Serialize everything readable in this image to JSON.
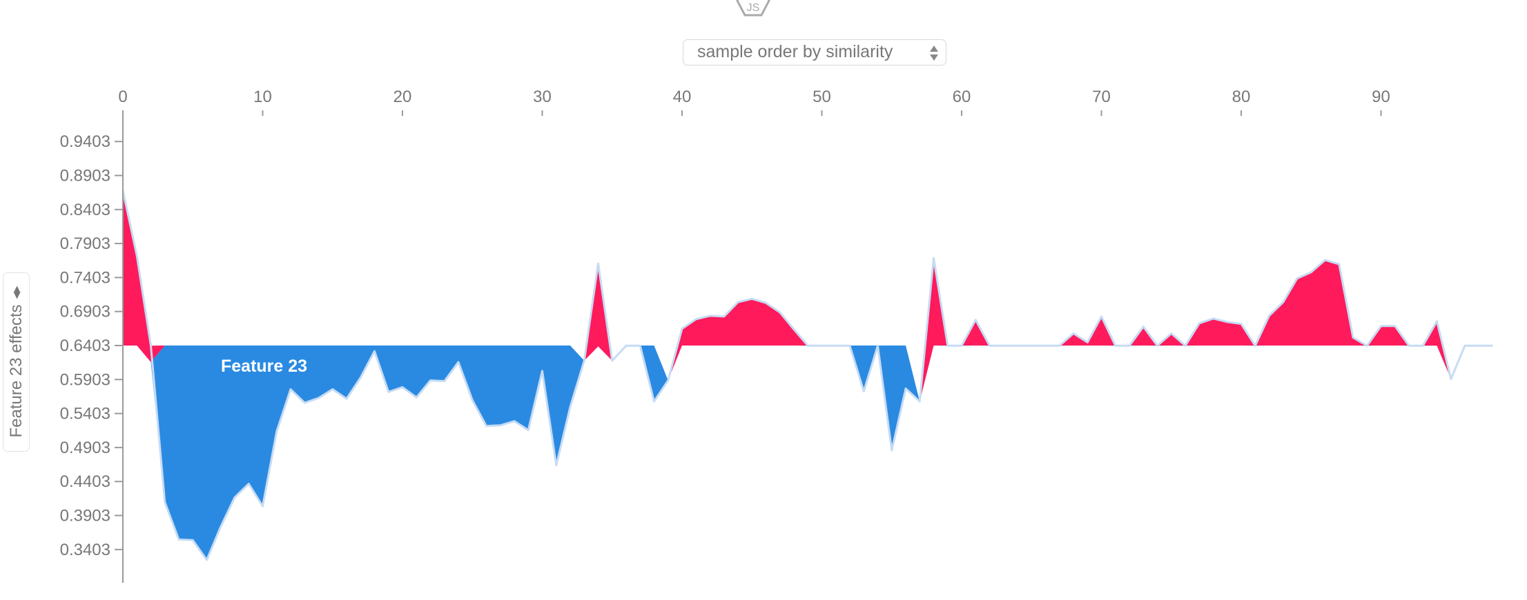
{
  "header": {
    "icon": "js-hexagon-icon",
    "order_select": {
      "selected": "sample order by similarity",
      "icon": "up-down-arrows-icon"
    }
  },
  "y_axis_selector": {
    "label": "Feature 23 effects",
    "icon": "left-right-arrows-icon",
    "arrows_glyph": "◀▶"
  },
  "colors": {
    "positive": "#ff1a5c",
    "negative": "#2a8ae2",
    "outline": "#c6dbf4",
    "axis": "#999999",
    "text": "#777777"
  },
  "chart_data": {
    "type": "area",
    "title": "",
    "xlabel": "sample order by similarity",
    "ylabel": "Feature 23 effects",
    "base_value": 0.6403,
    "x_ticks": [
      0,
      10,
      20,
      30,
      40,
      50,
      60,
      70,
      80,
      90
    ],
    "y_ticks": [
      "0.9403",
      "0.8903",
      "0.8403",
      "0.7903",
      "0.7403",
      "0.6903",
      "0.6403",
      "0.5903",
      "0.5403",
      "0.4903",
      "0.4403",
      "0.3903",
      "0.3403"
    ],
    "y_tick_values": [
      0.9403,
      0.8903,
      0.8403,
      0.7903,
      0.7403,
      0.6903,
      0.6403,
      0.5903,
      0.5403,
      0.4903,
      0.4403,
      0.3903,
      0.3403
    ],
    "xlim": [
      0,
      98
    ],
    "ylim": [
      0.29,
      0.985
    ],
    "annotation": "Feature 23",
    "legend": {
      "positive_color": "red (higher)",
      "negative_color": "blue (lower)"
    },
    "series": [
      {
        "name": "output",
        "x": [
          0,
          1,
          2,
          3,
          4,
          5,
          6,
          7,
          8,
          9,
          10,
          11,
          12,
          13,
          14,
          15,
          16,
          17,
          18,
          19,
          20,
          21,
          22,
          23,
          24,
          25,
          26,
          27,
          28,
          29,
          30,
          31,
          32,
          33,
          34,
          35,
          36,
          37,
          38,
          39,
          40,
          41,
          42,
          43,
          44,
          45,
          46,
          47,
          48,
          49,
          50,
          51,
          52,
          53,
          54,
          55,
          56,
          57,
          58,
          59,
          60,
          61,
          62,
          63,
          64,
          65,
          66,
          67,
          68,
          69,
          70,
          71,
          72,
          73,
          74,
          75,
          76,
          77,
          78,
          79,
          80,
          81,
          82,
          83,
          84,
          85,
          86,
          87,
          88,
          89,
          90,
          91,
          92,
          93,
          94,
          95,
          96,
          97,
          98
        ],
        "values": [
          0.868,
          0.772,
          0.64,
          0.41,
          0.355,
          0.354,
          0.325,
          0.374,
          0.417,
          0.437,
          0.404,
          0.514,
          0.576,
          0.556,
          0.563,
          0.576,
          0.562,
          0.593,
          0.632,
          0.572,
          0.579,
          0.564,
          0.589,
          0.588,
          0.616,
          0.56,
          0.522,
          0.523,
          0.529,
          0.516,
          0.603,
          0.464,
          0.55,
          0.618,
          0.761,
          0.618,
          0.64,
          0.64,
          0.558,
          0.589,
          0.665,
          0.679,
          0.684,
          0.683,
          0.704,
          0.709,
          0.703,
          0.689,
          0.664,
          0.64,
          0.64,
          0.64,
          0.64,
          0.573,
          0.64,
          0.486,
          0.577,
          0.558,
          0.769,
          0.64,
          0.64,
          0.678,
          0.64,
          0.64,
          0.64,
          0.64,
          0.64,
          0.64,
          0.658,
          0.645,
          0.683,
          0.64,
          0.64,
          0.668,
          0.64,
          0.658,
          0.64,
          0.673,
          0.68,
          0.675,
          0.672,
          0.64,
          0.684,
          0.704,
          0.739,
          0.748,
          0.766,
          0.76,
          0.652,
          0.64,
          0.669,
          0.669,
          0.64,
          0.64,
          0.676,
          0.591,
          0.64,
          0.64,
          0.64
        ]
      },
      {
        "name": "red_blue_boundary",
        "overrides": {
          "2": 0.616,
          "33": 0.618,
          "34": 0.639,
          "35": 0.618,
          "39": 0.589,
          "57": 0.558,
          "94": 0.64,
          "95": 0.591
        }
      }
    ]
  }
}
